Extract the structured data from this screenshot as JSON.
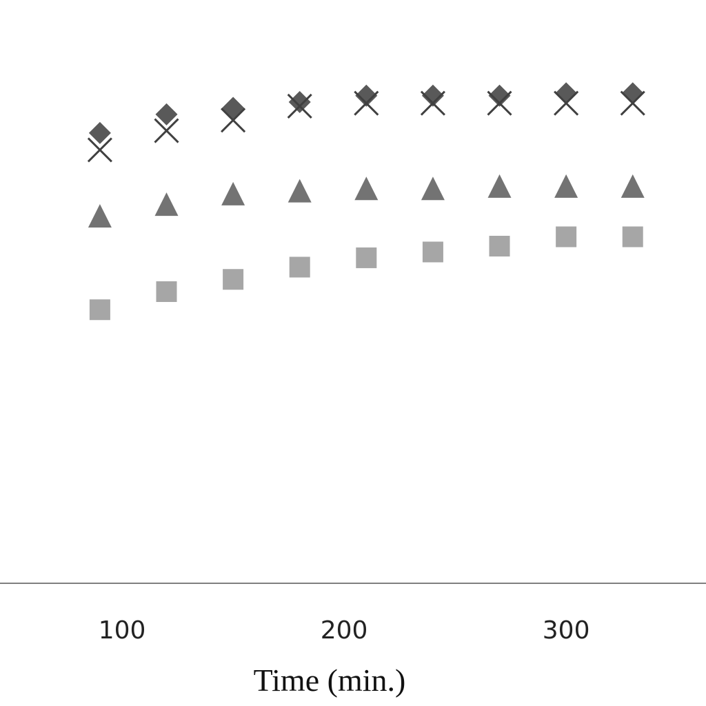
{
  "chart_data": {
    "type": "scatter",
    "title": "",
    "xlabel": "Time (min.)",
    "ylabel": "",
    "xlim": [
      45,
      363
    ],
    "ylim": [
      0,
      1.0
    ],
    "x_ticks": [
      100,
      200,
      300
    ],
    "x_tick_labels": [
      "100",
      "200",
      "300"
    ],
    "grid": false,
    "legend": "none",
    "series": [
      {
        "marker": "diamond",
        "color": "#595959",
        "x": [
          90,
          120,
          150,
          180,
          210,
          240,
          270,
          300,
          330
        ],
        "y": [
          0.772,
          0.804,
          0.815,
          0.825,
          0.836,
          0.836,
          0.836,
          0.84,
          0.84
        ]
      },
      {
        "marker": "x",
        "color": "#404040",
        "x": [
          90,
          120,
          150,
          180,
          210,
          240,
          270,
          300,
          330
        ],
        "y": [
          0.743,
          0.776,
          0.794,
          0.818,
          0.823,
          0.823,
          0.823,
          0.823,
          0.823
        ]
      },
      {
        "marker": "triangle",
        "color": "#737373",
        "x": [
          90,
          120,
          150,
          180,
          210,
          240,
          270,
          300,
          330
        ],
        "y": [
          0.63,
          0.65,
          0.668,
          0.673,
          0.677,
          0.677,
          0.681,
          0.681,
          0.681
        ]
      },
      {
        "marker": "square",
        "color": "#a6a6a6",
        "x": [
          90,
          120,
          150,
          180,
          210,
          240,
          270,
          300,
          330
        ],
        "y": [
          0.469,
          0.5,
          0.521,
          0.542,
          0.558,
          0.568,
          0.578,
          0.594,
          0.594
        ]
      }
    ],
    "colors": {
      "axis": "#7f7f7f"
    }
  }
}
